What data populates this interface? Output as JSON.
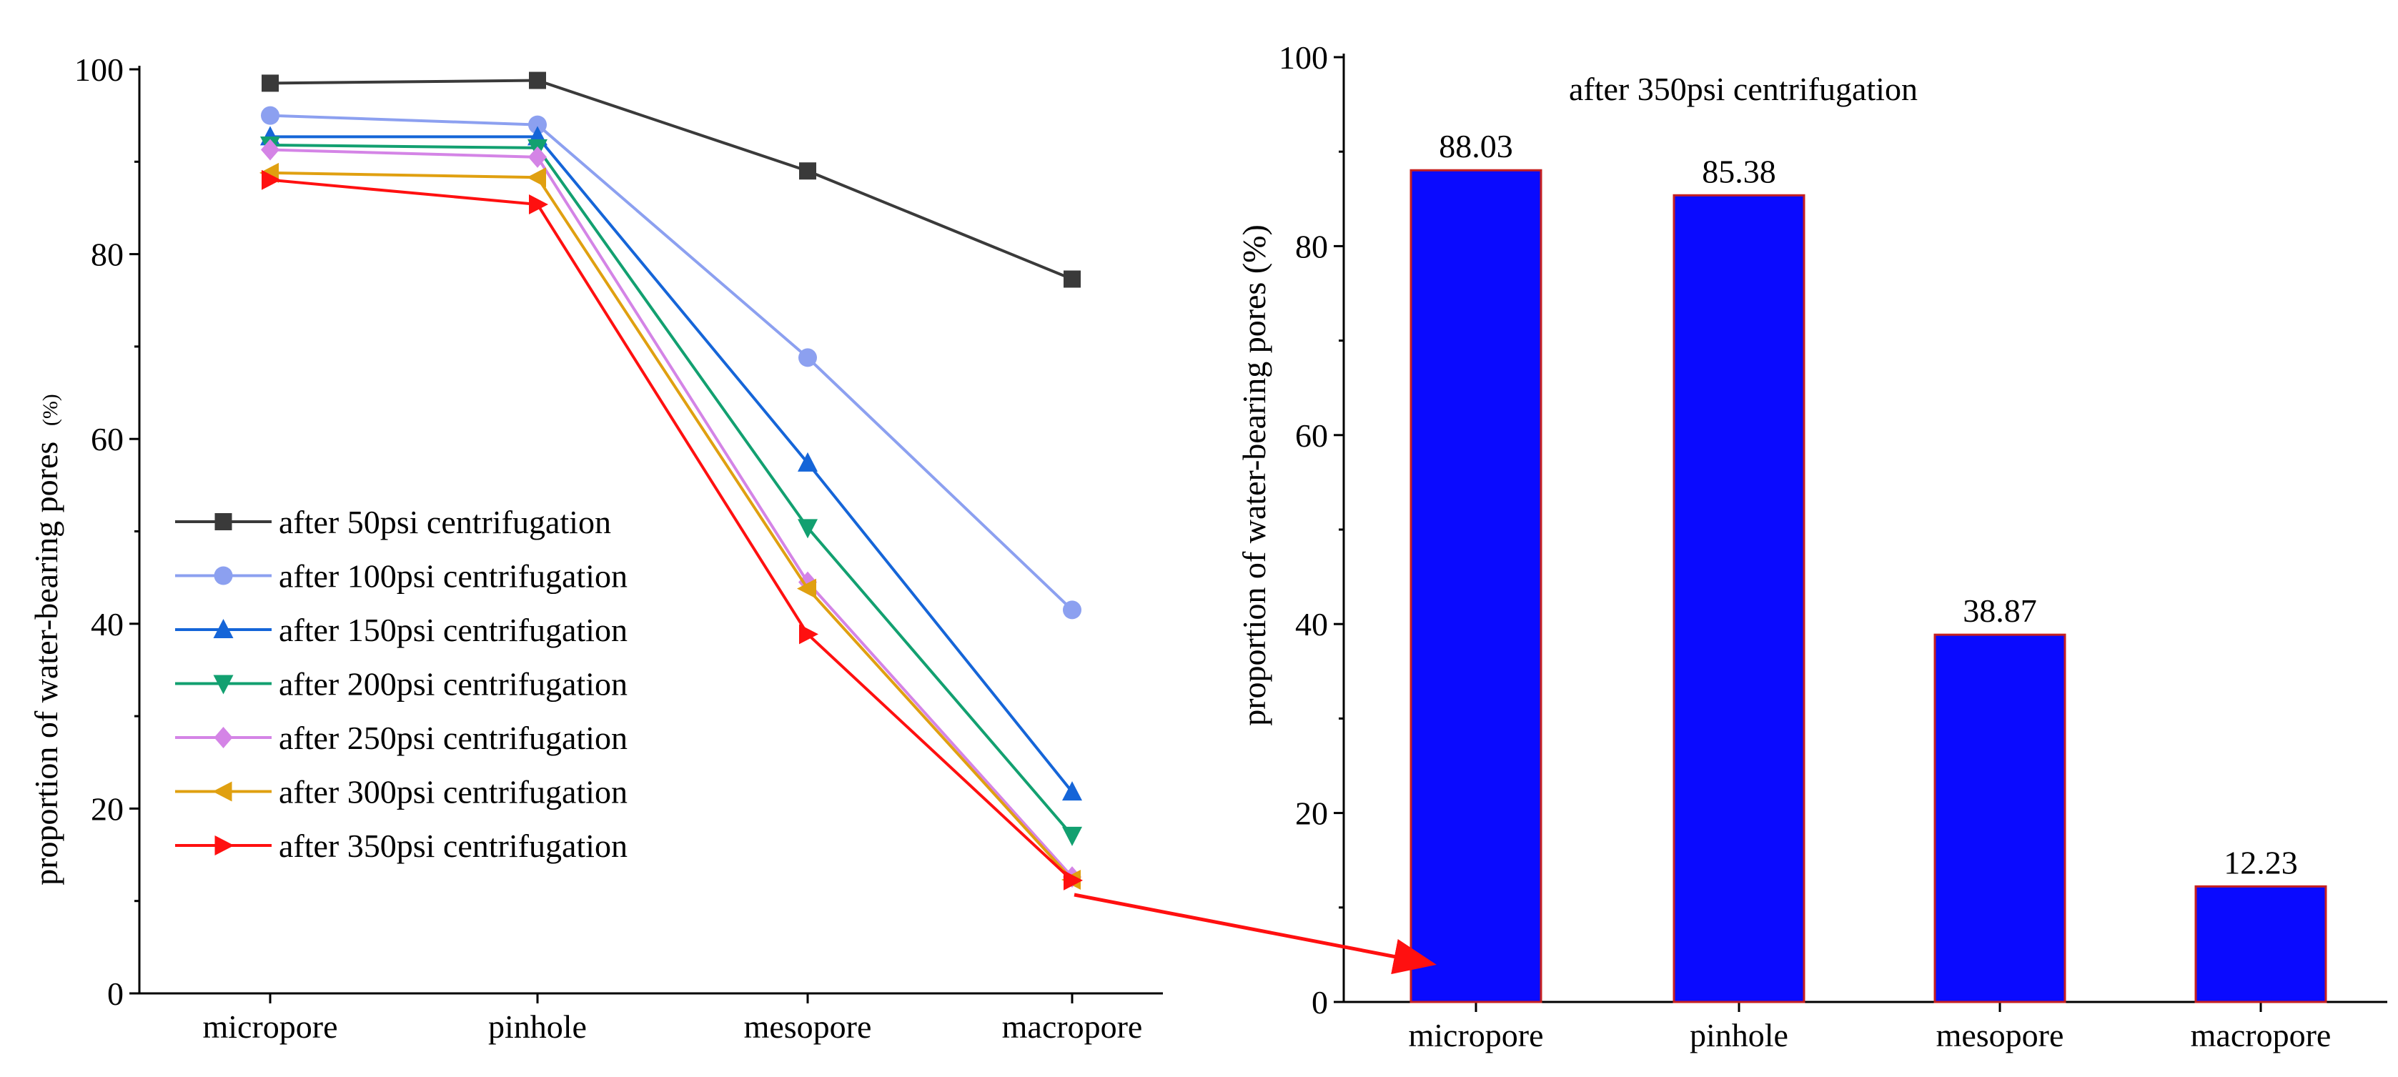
{
  "chart_data": [
    {
      "type": "line",
      "categories": [
        "micropore",
        "pinhole",
        "mesopore",
        "macropore"
      ],
      "ylabel": "proportion of water-bearing pores",
      "ylabel_unit": "(%)",
      "xlabel": "",
      "ylim": [
        0,
        100
      ],
      "yticks": [
        0,
        20,
        40,
        60,
        80,
        100
      ],
      "legend_position": "center-left",
      "series": [
        {
          "name": "after 50psi centrifugation",
          "values": [
            98.5,
            98.8,
            89.0,
            77.3
          ],
          "color": "#3a3a3a",
          "marker": "square"
        },
        {
          "name": "after 100psi centrifugation",
          "values": [
            95.0,
            94.0,
            68.8,
            41.5
          ],
          "color": "#8ca0f0",
          "marker": "circle"
        },
        {
          "name": "after 150psi centrifugation",
          "values": [
            92.7,
            92.7,
            57.4,
            21.8
          ],
          "color": "#1565d8",
          "marker": "triangle-up"
        },
        {
          "name": "after 200psi centrifugation",
          "values": [
            91.8,
            91.5,
            50.4,
            17.1
          ],
          "color": "#12a070",
          "marker": "triangle-down"
        },
        {
          "name": "after 250psi centrifugation",
          "values": [
            91.3,
            90.5,
            44.5,
            12.6
          ],
          "color": "#d484e6",
          "marker": "diamond"
        },
        {
          "name": "after 300psi centrifugation",
          "values": [
            88.8,
            88.3,
            43.8,
            12.3
          ],
          "color": "#e0a010",
          "marker": "triangle-left"
        },
        {
          "name": "after 350psi centrifugation",
          "values": [
            88.03,
            85.38,
            38.87,
            12.23
          ],
          "color": "#ff1010",
          "marker": "triangle-right"
        }
      ]
    },
    {
      "type": "bar",
      "title": "after 350psi centrifugation",
      "categories": [
        "micropore",
        "pinhole",
        "mesopore",
        "macropore"
      ],
      "values": [
        88.03,
        85.38,
        38.87,
        12.23
      ],
      "value_labels": [
        "88.03",
        "85.38",
        "38.87",
        "12.23"
      ],
      "ylabel": "proportion of water-bearing pores (%)",
      "xlabel": "",
      "ylim": [
        0,
        100
      ],
      "yticks": [
        0,
        20,
        40,
        60,
        80,
        100
      ],
      "bar_color": "#0a0aff",
      "bar_edge_color": "#c62020"
    }
  ],
  "annotation": {
    "type": "arrow",
    "from": "after 350psi centrifugation, macropore",
    "to": "micropore bar",
    "color": "#ff1010"
  }
}
